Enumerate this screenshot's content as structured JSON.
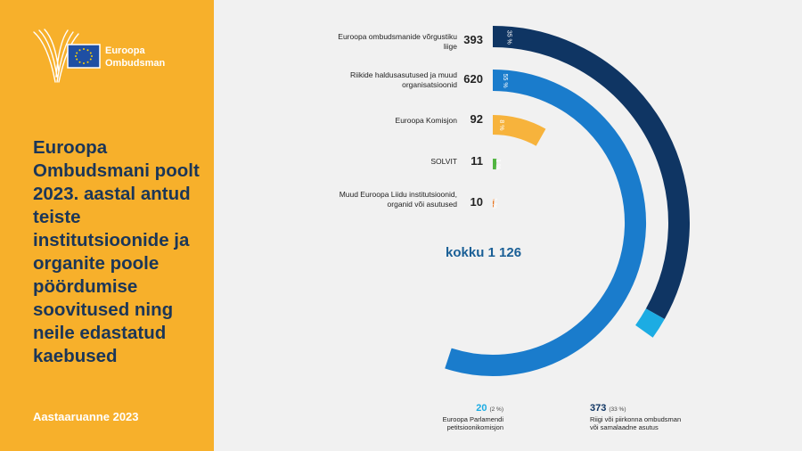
{
  "panel": {
    "logo_line1": "Euroopa",
    "logo_line2": "Ombudsman",
    "title": "Euroopa Ombudsmani poolt 2023. aastal antud teiste institutsioonide ja organite poole pöördumise soovitused ning neile edastatud kaebused",
    "footer": "Aastaaruanne 2023"
  },
  "colors": {
    "panel_bg": "#f7b02b",
    "title_text": "#1b3658",
    "network": "#0f3563",
    "national": "#1a7ccc",
    "commission": "#f7b33c",
    "solvit": "#52b542",
    "other_eu": "#e9731c",
    "petitions": "#1cace3",
    "total_text": "#1a5f96"
  },
  "chart_data": {
    "type": "donut",
    "total_label": "kokku 1 126",
    "total": 1126,
    "series": [
      {
        "label": "Euroopa ombudsmanide võrgustiku liige",
        "value": 393,
        "percent": "35 %",
        "color": "#0f3563",
        "breakdown": [
          {
            "label": "Riigi või piirkonna ombudsman või samalaadne asutus",
            "value": 373,
            "percent": "(33 %)",
            "color": "#0f3563"
          },
          {
            "label": "Euroopa Parlamendi petitsioonikomisjon",
            "value": 20,
            "percent": "(2 %)",
            "color": "#1cace3"
          }
        ]
      },
      {
        "label": "Riikide haldusasutused ja muud organisatsioonid",
        "value": 620,
        "percent": "55 %",
        "color": "#1a7ccc"
      },
      {
        "label": "Euroopa Komisjon",
        "value": 92,
        "percent": "8 %",
        "color": "#f7b33c"
      },
      {
        "label": "SOLVIT",
        "value": 11,
        "percent": "1 %",
        "color": "#52b542"
      },
      {
        "label": "Muud Euroopa Liidu institutsioonid, organid või asutused",
        "value": 10,
        "percent": "1 %",
        "color": "#e9731c"
      }
    ]
  }
}
